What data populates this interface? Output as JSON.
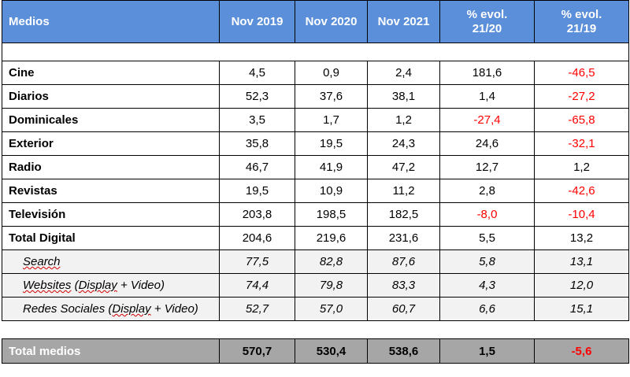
{
  "header": {
    "col_medios": "Medios",
    "col_2019": "Nov 2019",
    "col_2020": "Nov 2020",
    "col_2021": "Nov 2021",
    "col_evol_21_20_line1": "% evol.",
    "col_evol_21_20_line2": "21/20",
    "col_evol_21_19_line1": "% evol.",
    "col_evol_21_19_line2": "21/19"
  },
  "rows": [
    {
      "name": "Cine",
      "v2019": "4,5",
      "v2020": "0,9",
      "v2021": "2,4",
      "evol2120": "181,6",
      "evol2119": "-46,5"
    },
    {
      "name": "Diarios",
      "v2019": "52,3",
      "v2020": "37,6",
      "v2021": "38,1",
      "evol2120": "1,4",
      "evol2119": "-27,2"
    },
    {
      "name": "Dominicales",
      "v2019": "3,5",
      "v2020": "1,7",
      "v2021": "1,2",
      "evol2120": "-27,4",
      "evol2119": "-65,8"
    },
    {
      "name": "Exterior",
      "v2019": "35,8",
      "v2020": "19,5",
      "v2021": "24,3",
      "evol2120": "24,6",
      "evol2119": "-32,1"
    },
    {
      "name": "Radio",
      "v2019": "46,7",
      "v2020": "41,9",
      "v2021": "47,2",
      "evol2120": "12,7",
      "evol2119": "1,2"
    },
    {
      "name": "Revistas",
      "v2019": "19,5",
      "v2020": "10,9",
      "v2021": "11,2",
      "evol2120": "2,8",
      "evol2119": "-42,6"
    },
    {
      "name": "Televisión",
      "v2019": "203,8",
      "v2020": "198,5",
      "v2021": "182,5",
      "evol2120": "-8,0",
      "evol2119": "-10,4"
    },
    {
      "name": "Total Digital",
      "v2019": "204,6",
      "v2020": "219,6",
      "v2021": "231,6",
      "evol2120": "5,5",
      "evol2119": "13,2"
    }
  ],
  "sub_rows": [
    {
      "name": "Search",
      "v2019": "77,5",
      "v2020": "82,8",
      "v2021": "87,6",
      "evol2120": "5,8",
      "evol2119": "13,1"
    },
    {
      "name_a": "Websites",
      "name_b": " (",
      "name_c": "Display",
      "name_d": " + Video)",
      "v2019": "74,4",
      "v2020": "79,8",
      "v2021": "83,3",
      "evol2120": "4,3",
      "evol2119": "12,0"
    },
    {
      "name_a": "Redes Sociales",
      "name_b": " (",
      "name_c": "Display",
      "name_d": " + Video)",
      "v2019": "52,7",
      "v2020": "57,0",
      "v2021": "60,7",
      "evol2120": "6,6",
      "evol2119": "15,1"
    }
  ],
  "total": {
    "name": "Total medios",
    "v2019": "570,7",
    "v2020": "530,4",
    "v2021": "538,6",
    "evol2120": "1,5",
    "evol2119": "-5,6"
  },
  "colors": {
    "header_bg": "#5b8fd9",
    "total_bg": "#a6a6a6",
    "sub_bg": "#f2f2f2",
    "negative": "#ff0000"
  }
}
